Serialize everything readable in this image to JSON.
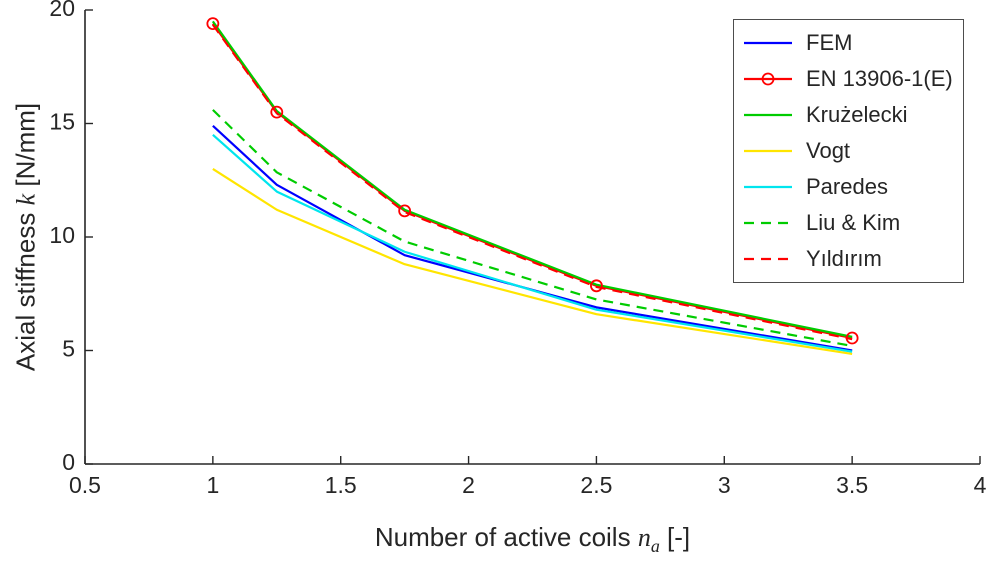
{
  "chart_data": {
    "type": "line",
    "xlabel": "Number of active coils n_a [-]",
    "ylabel": "Axial stiffness k [N/mm]",
    "xlabel_parts": {
      "pre": "Number of active coils ",
      "italic": "n",
      "sub": "a",
      "post": " [-]"
    },
    "ylabel_parts": {
      "pre": "Axial stiffness ",
      "italic": "k",
      "post": " [N/mm]"
    },
    "xlim": [
      0.5,
      4
    ],
    "ylim": [
      0,
      20
    ],
    "xticks": [
      0.5,
      1,
      1.5,
      2,
      2.5,
      3,
      3.5,
      4
    ],
    "yticks": [
      0,
      5,
      10,
      15,
      20
    ],
    "grid": false,
    "legend_position": "top-right",
    "x": [
      1,
      1.25,
      1.75,
      2.5,
      3.5
    ],
    "series": [
      {
        "name": "FEM",
        "color": "#0000ff",
        "style": "solid",
        "marker": "none",
        "values": [
          14.9,
          12.3,
          9.2,
          6.9,
          5.0
        ]
      },
      {
        "name": "EN 13906-1(E)",
        "color": "#ff0000",
        "style": "solid",
        "marker": "circle",
        "values": [
          19.4,
          15.5,
          11.15,
          7.85,
          5.55
        ]
      },
      {
        "name": "Krużelecki",
        "color": "#00cc00",
        "style": "solid",
        "marker": "none",
        "values": [
          19.5,
          15.55,
          11.2,
          7.9,
          5.6
        ]
      },
      {
        "name": "Vogt",
        "color": "#ffe500",
        "style": "solid",
        "marker": "none",
        "values": [
          13.0,
          11.2,
          8.8,
          6.6,
          4.85
        ]
      },
      {
        "name": "Paredes",
        "color": "#00e5ee",
        "style": "solid",
        "marker": "none",
        "values": [
          14.5,
          12.0,
          9.35,
          6.8,
          4.95
        ]
      },
      {
        "name": "Liu & Kim",
        "color": "#00cc00",
        "style": "dashed",
        "marker": "none",
        "values": [
          15.6,
          12.85,
          9.8,
          7.25,
          5.2
        ]
      },
      {
        "name": "Yıldırım",
        "color": "#ff0000",
        "style": "dashed",
        "marker": "none",
        "values": [
          19.35,
          15.45,
          11.1,
          7.8,
          5.5
        ]
      }
    ],
    "axis_color": "#262626",
    "tick_font_size": 23,
    "legend_font_size": 22
  }
}
